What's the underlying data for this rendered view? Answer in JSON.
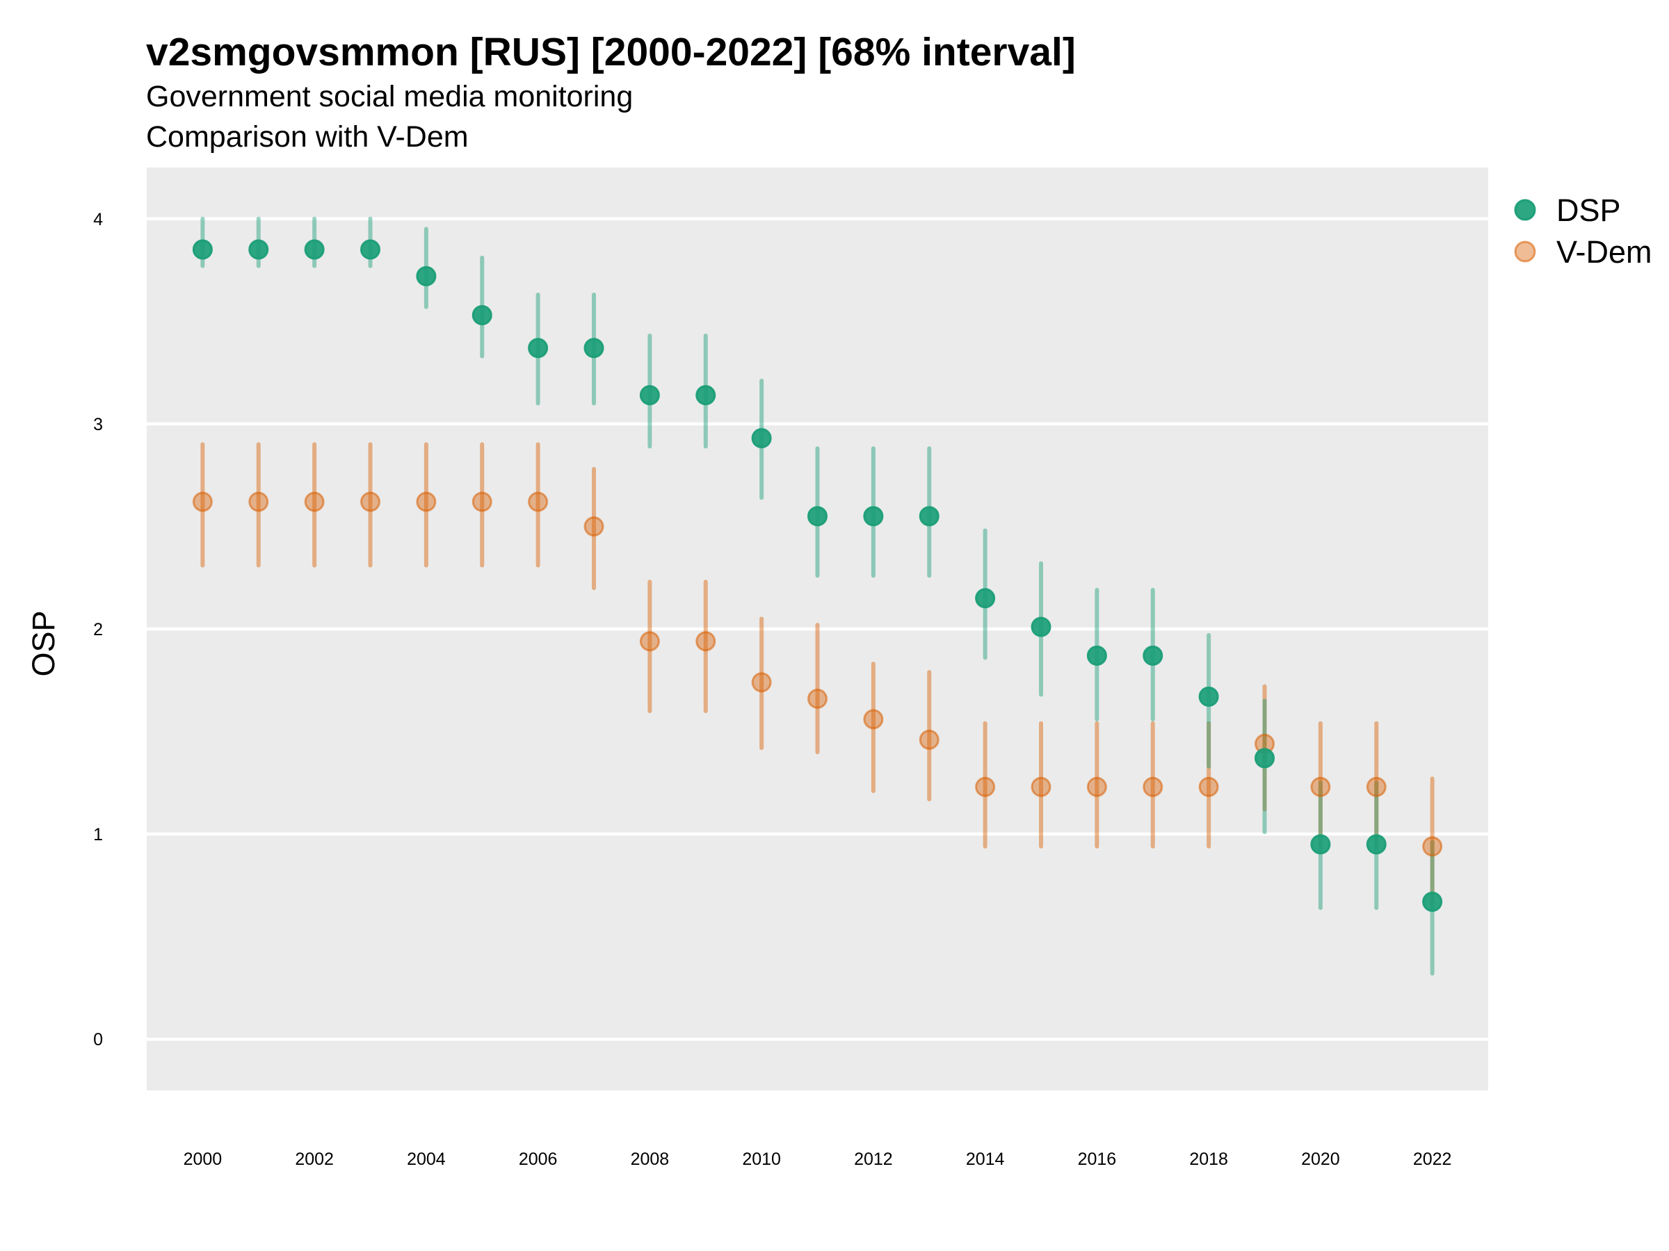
{
  "chart_data": {
    "type": "scatter",
    "title": "v2smgovsmmon [RUS] [2000-2022] [68% interval]",
    "subtitle": "Government social media monitoring",
    "caption": "Comparison with V-Dem",
    "xlabel": "",
    "ylabel": "OSP",
    "xlim": [
      1999,
      2023
    ],
    "ylim": [
      -0.25,
      4.25
    ],
    "xticks": [
      "2000",
      "2002",
      "2004",
      "2006",
      "2008",
      "2010",
      "2012",
      "2014",
      "2016",
      "2018",
      "2020",
      "2022"
    ],
    "yticks": [
      "0",
      "1",
      "2",
      "3",
      "4"
    ],
    "legend_position": "right",
    "x": [
      2000,
      2001,
      2002,
      2003,
      2004,
      2005,
      2006,
      2007,
      2008,
      2009,
      2010,
      2011,
      2012,
      2013,
      2014,
      2015,
      2016,
      2017,
      2018,
      2019,
      2020,
      2021,
      2022
    ],
    "series": [
      {
        "name": "DSP",
        "color": "#1b9e77",
        "values": [
          3.85,
          3.85,
          3.85,
          3.85,
          3.72,
          3.53,
          3.37,
          3.37,
          3.14,
          3.14,
          2.93,
          2.55,
          2.55,
          2.55,
          2.15,
          2.01,
          1.87,
          1.87,
          1.67,
          1.37,
          0.95,
          0.95,
          0.67
        ],
        "lower": [
          3.77,
          3.77,
          3.77,
          3.77,
          3.57,
          3.33,
          3.1,
          3.1,
          2.89,
          2.89,
          2.64,
          2.26,
          2.26,
          2.26,
          1.86,
          1.68,
          1.56,
          1.56,
          1.33,
          1.01,
          0.64,
          0.64,
          0.32
        ],
        "upper": [
          4.0,
          4.0,
          4.0,
          4.0,
          3.95,
          3.81,
          3.63,
          3.63,
          3.43,
          3.43,
          3.21,
          2.88,
          2.88,
          2.88,
          2.48,
          2.32,
          2.19,
          2.19,
          1.97,
          1.65,
          1.25,
          1.25,
          0.96
        ]
      },
      {
        "name": "V-Dem",
        "color": "#d95f02",
        "values": [
          2.62,
          2.62,
          2.62,
          2.62,
          2.62,
          2.62,
          2.62,
          2.5,
          1.94,
          1.94,
          1.74,
          1.66,
          1.56,
          1.46,
          1.23,
          1.23,
          1.23,
          1.23,
          1.23,
          1.44,
          1.23,
          1.23,
          0.94
        ],
        "lower": [
          2.31,
          2.31,
          2.31,
          2.31,
          2.31,
          2.31,
          2.31,
          2.2,
          1.6,
          1.6,
          1.42,
          1.4,
          1.21,
          1.17,
          0.94,
          0.94,
          0.94,
          0.94,
          0.94,
          1.12,
          0.94,
          0.94,
          0.66
        ],
        "upper": [
          2.9,
          2.9,
          2.9,
          2.9,
          2.9,
          2.9,
          2.9,
          2.78,
          2.23,
          2.23,
          2.05,
          2.02,
          1.83,
          1.79,
          1.54,
          1.54,
          1.54,
          1.54,
          1.54,
          1.72,
          1.54,
          1.54,
          1.27
        ]
      }
    ]
  }
}
